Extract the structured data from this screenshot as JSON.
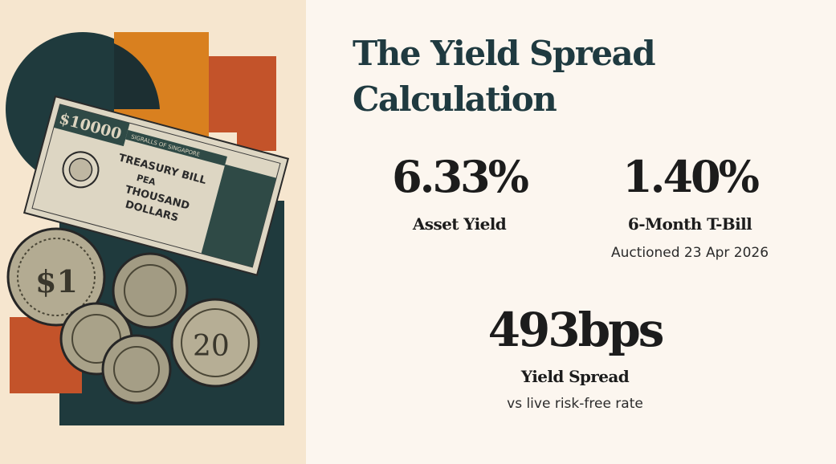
{
  "title": "The Yield Spread Calculation",
  "illustration": {
    "note_text": "$10000",
    "note_band": "SIGRALLS OF SINGAPORE",
    "note_line1": "TREASURY BILL",
    "note_line2": "PEA",
    "note_line3": "THOUSAND",
    "note_line4": "DOLLARS",
    "coin_1": "$1",
    "coin_2": "20",
    "colors": {
      "background": "#f6e6cf",
      "teal": "#1f3a3d",
      "orange": "#d9801f",
      "rust": "#c3532a",
      "paper": "#ddd6c3"
    }
  },
  "stats": {
    "asset": {
      "value": "6.33%",
      "label": "Asset Yield"
    },
    "tbill": {
      "value": "1.40%",
      "label": "6-Month T-Bill",
      "note": "Auctioned 23 Apr 2026"
    },
    "spread": {
      "value": "493bps",
      "label": "Yield Spread",
      "note": "vs live risk-free rate"
    }
  }
}
